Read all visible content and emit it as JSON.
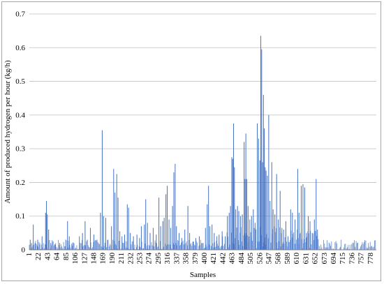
{
  "chart_data": {
    "type": "bar",
    "title": "",
    "xlabel": "Samples",
    "ylabel": "Amount of produced hydrogen per hour  (kg/h)",
    "ylim": [
      0,
      0.7
    ],
    "yticks": [
      0,
      0.1,
      0.2,
      0.3,
      0.4,
      0.5,
      0.6,
      0.7
    ],
    "ytick_labels": [
      "0",
      "0.1",
      "0.2",
      "0.3",
      "0.4",
      "0.5",
      "0.6",
      "0.7"
    ],
    "xlim": [
      1,
      791
    ],
    "xticks": [
      1,
      22,
      43,
      64,
      85,
      106,
      127,
      148,
      169,
      190,
      211,
      232,
      253,
      274,
      295,
      316,
      337,
      358,
      379,
      400,
      421,
      442,
      463,
      484,
      505,
      526,
      547,
      568,
      589,
      610,
      631,
      652,
      673,
      694,
      715,
      736,
      757,
      778
    ],
    "grid": "horizontal",
    "color": "#4472c4",
    "peaks": [
      {
        "x": 3,
        "y": 0.03
      },
      {
        "x": 6,
        "y": 0.02
      },
      {
        "x": 10,
        "y": 0.075
      },
      {
        "x": 14,
        "y": 0.02
      },
      {
        "x": 20,
        "y": 0.03
      },
      {
        "x": 25,
        "y": 0.015
      },
      {
        "x": 30,
        "y": 0.04
      },
      {
        "x": 38,
        "y": 0.11
      },
      {
        "x": 40,
        "y": 0.145
      },
      {
        "x": 42,
        "y": 0.105
      },
      {
        "x": 45,
        "y": 0.06
      },
      {
        "x": 50,
        "y": 0.02
      },
      {
        "x": 55,
        "y": 0.025
      },
      {
        "x": 60,
        "y": 0.015
      },
      {
        "x": 70,
        "y": 0.02
      },
      {
        "x": 84,
        "y": 0.03
      },
      {
        "x": 88,
        "y": 0.085
      },
      {
        "x": 92,
        "y": 0.04
      },
      {
        "x": 100,
        "y": 0.02
      },
      {
        "x": 115,
        "y": 0.04
      },
      {
        "x": 122,
        "y": 0.05
      },
      {
        "x": 128,
        "y": 0.085
      },
      {
        "x": 133,
        "y": 0.03
      },
      {
        "x": 140,
        "y": 0.065
      },
      {
        "x": 148,
        "y": 0.045
      },
      {
        "x": 155,
        "y": 0.03
      },
      {
        "x": 163,
        "y": 0.11
      },
      {
        "x": 167,
        "y": 0.355
      },
      {
        "x": 170,
        "y": 0.1
      },
      {
        "x": 175,
        "y": 0.095
      },
      {
        "x": 180,
        "y": 0.03
      },
      {
        "x": 188,
        "y": 0.07
      },
      {
        "x": 193,
        "y": 0.24
      },
      {
        "x": 196,
        "y": 0.17
      },
      {
        "x": 200,
        "y": 0.225
      },
      {
        "x": 203,
        "y": 0.155
      },
      {
        "x": 207,
        "y": 0.055
      },
      {
        "x": 212,
        "y": 0.04
      },
      {
        "x": 218,
        "y": 0.045
      },
      {
        "x": 224,
        "y": 0.135
      },
      {
        "x": 227,
        "y": 0.125
      },
      {
        "x": 231,
        "y": 0.05
      },
      {
        "x": 238,
        "y": 0.04
      },
      {
        "x": 246,
        "y": 0.045
      },
      {
        "x": 252,
        "y": 0.035
      },
      {
        "x": 256,
        "y": 0.07
      },
      {
        "x": 263,
        "y": 0.075
      },
      {
        "x": 266,
        "y": 0.15
      },
      {
        "x": 270,
        "y": 0.08
      },
      {
        "x": 276,
        "y": 0.05
      },
      {
        "x": 283,
        "y": 0.065
      },
      {
        "x": 290,
        "y": 0.045
      },
      {
        "x": 296,
        "y": 0.155
      },
      {
        "x": 300,
        "y": 0.07
      },
      {
        "x": 305,
        "y": 0.085
      },
      {
        "x": 308,
        "y": 0.095
      },
      {
        "x": 312,
        "y": 0.165
      },
      {
        "x": 315,
        "y": 0.19
      },
      {
        "x": 319,
        "y": 0.09
      },
      {
        "x": 323,
        "y": 0.065
      },
      {
        "x": 327,
        "y": 0.13
      },
      {
        "x": 330,
        "y": 0.23
      },
      {
        "x": 333,
        "y": 0.255
      },
      {
        "x": 336,
        "y": 0.07
      },
      {
        "x": 342,
        "y": 0.05
      },
      {
        "x": 348,
        "y": 0.035
      },
      {
        "x": 355,
        "y": 0.06
      },
      {
        "x": 362,
        "y": 0.13
      },
      {
        "x": 366,
        "y": 0.05
      },
      {
        "x": 374,
        "y": 0.025
      },
      {
        "x": 380,
        "y": 0.035
      },
      {
        "x": 388,
        "y": 0.04
      },
      {
        "x": 395,
        "y": 0.02
      },
      {
        "x": 402,
        "y": 0.065
      },
      {
        "x": 406,
        "y": 0.135
      },
      {
        "x": 409,
        "y": 0.19
      },
      {
        "x": 412,
        "y": 0.07
      },
      {
        "x": 417,
        "y": 0.075
      },
      {
        "x": 422,
        "y": 0.05
      },
      {
        "x": 428,
        "y": 0.04
      },
      {
        "x": 433,
        "y": 0.045
      },
      {
        "x": 440,
        "y": 0.055
      },
      {
        "x": 447,
        "y": 0.04
      },
      {
        "x": 452,
        "y": 0.1
      },
      {
        "x": 456,
        "y": 0.11
      },
      {
        "x": 459,
        "y": 0.13
      },
      {
        "x": 462,
        "y": 0.275
      },
      {
        "x": 464,
        "y": 0.27
      },
      {
        "x": 466,
        "y": 0.375
      },
      {
        "x": 468,
        "y": 0.245
      },
      {
        "x": 471,
        "y": 0.12
      },
      {
        "x": 475,
        "y": 0.13
      },
      {
        "x": 478,
        "y": 0.115
      },
      {
        "x": 482,
        "y": 0.1
      },
      {
        "x": 486,
        "y": 0.105
      },
      {
        "x": 490,
        "y": 0.32
      },
      {
        "x": 492,
        "y": 0.21
      },
      {
        "x": 494,
        "y": 0.345
      },
      {
        "x": 496,
        "y": 0.21
      },
      {
        "x": 499,
        "y": 0.13
      },
      {
        "x": 503,
        "y": 0.09
      },
      {
        "x": 507,
        "y": 0.1
      },
      {
        "x": 511,
        "y": 0.12
      },
      {
        "x": 515,
        "y": 0.08
      },
      {
        "x": 520,
        "y": 0.375
      },
      {
        "x": 523,
        "y": 0.33
      },
      {
        "x": 526,
        "y": 0.265
      },
      {
        "x": 528,
        "y": 0.635
      },
      {
        "x": 530,
        "y": 0.595
      },
      {
        "x": 532,
        "y": 0.26
      },
      {
        "x": 534,
        "y": 0.46
      },
      {
        "x": 536,
        "y": 0.36
      },
      {
        "x": 538,
        "y": 0.245
      },
      {
        "x": 540,
        "y": 0.235
      },
      {
        "x": 543,
        "y": 0.22
      },
      {
        "x": 546,
        "y": 0.4
      },
      {
        "x": 549,
        "y": 0.145
      },
      {
        "x": 553,
        "y": 0.26
      },
      {
        "x": 556,
        "y": 0.12
      },
      {
        "x": 560,
        "y": 0.105
      },
      {
        "x": 564,
        "y": 0.225
      },
      {
        "x": 568,
        "y": 0.09
      },
      {
        "x": 572,
        "y": 0.175
      },
      {
        "x": 576,
        "y": 0.065
      },
      {
        "x": 580,
        "y": 0.06
      },
      {
        "x": 585,
        "y": 0.085
      },
      {
        "x": 590,
        "y": 0.04
      },
      {
        "x": 596,
        "y": 0.12
      },
      {
        "x": 600,
        "y": 0.11
      },
      {
        "x": 606,
        "y": 0.09
      },
      {
        "x": 612,
        "y": 0.24
      },
      {
        "x": 615,
        "y": 0.11
      },
      {
        "x": 620,
        "y": 0.19
      },
      {
        "x": 624,
        "y": 0.195
      },
      {
        "x": 628,
        "y": 0.185
      },
      {
        "x": 632,
        "y": 0.05
      },
      {
        "x": 636,
        "y": 0.1
      },
      {
        "x": 640,
        "y": 0.085
      },
      {
        "x": 645,
        "y": 0.05
      },
      {
        "x": 650,
        "y": 0.09
      },
      {
        "x": 654,
        "y": 0.21
      },
      {
        "x": 657,
        "y": 0.06
      }
    ]
  }
}
